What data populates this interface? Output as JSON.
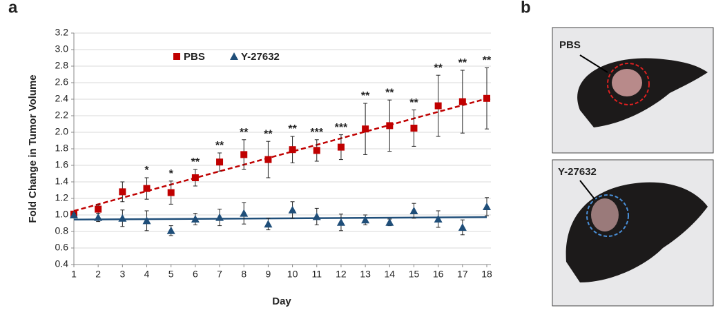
{
  "chart_data": {
    "type": "scatter",
    "panel_label": "a",
    "xlabel": "Day",
    "ylabel": "Fold Change in Tumor Volume",
    "x": [
      1,
      2,
      3,
      4,
      5,
      6,
      7,
      8,
      9,
      10,
      11,
      12,
      13,
      14,
      15,
      16,
      17,
      18
    ],
    "xlim": [
      1,
      18
    ],
    "xticks": [
      1,
      2,
      3,
      4,
      5,
      6,
      7,
      8,
      9,
      10,
      11,
      12,
      13,
      14,
      15,
      16,
      17,
      18
    ],
    "ylim": [
      0.4,
      3.2
    ],
    "yticks": [
      0.4,
      0.6,
      0.8,
      {
        "value": 1,
        "label": "1.0"
      },
      1.2,
      1.4,
      1.6,
      1.8,
      {
        "value": 2,
        "label": "2.0"
      },
      2.2,
      2.4,
      2.6,
      2.8,
      {
        "value": 3,
        "label": "3.0"
      },
      3.2
    ],
    "grid": true,
    "legend": "upper center",
    "trendline": true,
    "series": [
      {
        "name": "PBS",
        "color": "#c00000",
        "marker": "square",
        "values": [
          1.01,
          1.07,
          1.28,
          1.32,
          1.27,
          1.45,
          1.64,
          1.73,
          1.67,
          1.79,
          1.78,
          1.82,
          2.04,
          2.08,
          2.05,
          2.32,
          2.37,
          2.41
        ],
        "errors": [
          0.02,
          0.05,
          0.12,
          0.13,
          0.14,
          0.1,
          0.11,
          0.18,
          0.22,
          0.16,
          0.13,
          0.15,
          0.31,
          0.31,
          0.22,
          0.37,
          0.38,
          0.37
        ]
      },
      {
        "name": "Y-27632",
        "color": "#1f4e79",
        "marker": "triangle",
        "values": [
          1.0,
          0.97,
          0.96,
          0.93,
          0.81,
          0.95,
          0.97,
          1.02,
          0.89,
          1.06,
          0.98,
          0.91,
          0.94,
          0.91,
          1.05,
          0.95,
          0.85,
          1.1
        ],
        "errors": [
          0.02,
          0.05,
          0.1,
          0.12,
          0.06,
          0.07,
          0.1,
          0.13,
          0.07,
          0.1,
          0.1,
          0.1,
          0.06,
          0.04,
          0.09,
          0.1,
          0.09,
          0.11
        ]
      }
    ],
    "annotations": [
      null,
      null,
      null,
      "*",
      "*",
      "**",
      "**",
      "**",
      "**",
      "**",
      "***",
      "***",
      "**",
      "**",
      "**",
      "**",
      "**",
      "**"
    ]
  },
  "photos": {
    "panel_label": "b",
    "items": [
      {
        "label": "PBS"
      },
      {
        "label": "Y-27632"
      }
    ]
  }
}
